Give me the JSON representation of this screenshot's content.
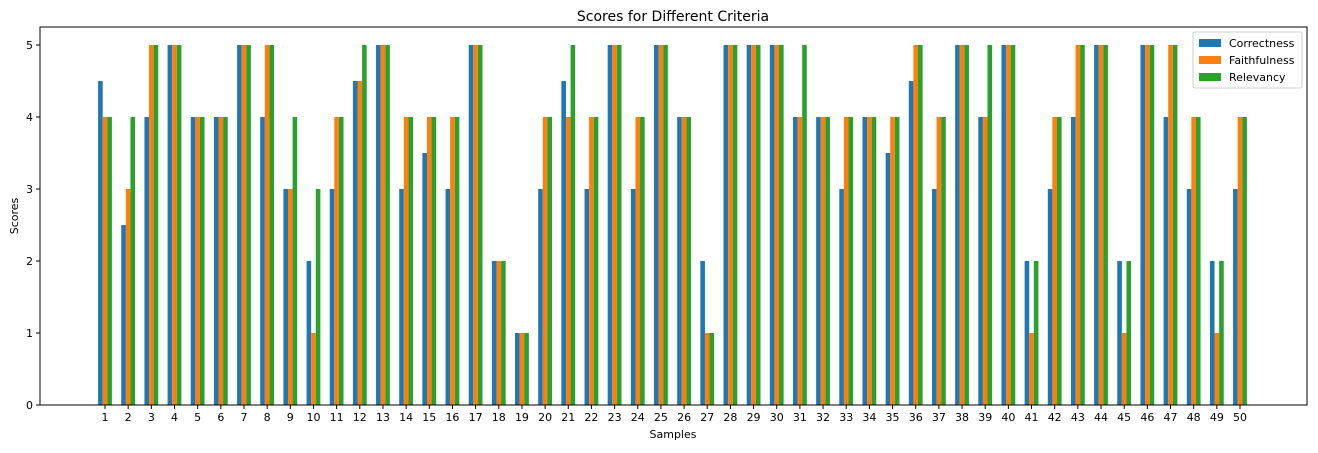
{
  "chart_data": {
    "type": "bar",
    "title": "Scores for Different Criteria",
    "xlabel": "Samples",
    "ylabel": "Scores",
    "ylim": [
      0,
      5.25
    ],
    "yticks": [
      0,
      1,
      2,
      3,
      4,
      5
    ],
    "grid": false,
    "legend_position": "top-right",
    "categories": [
      "1",
      "2",
      "3",
      "4",
      "5",
      "6",
      "7",
      "8",
      "9",
      "10",
      "11",
      "12",
      "13",
      "14",
      "15",
      "16",
      "17",
      "18",
      "19",
      "20",
      "21",
      "22",
      "23",
      "24",
      "25",
      "26",
      "27",
      "28",
      "29",
      "30",
      "31",
      "32",
      "33",
      "34",
      "35",
      "36",
      "37",
      "38",
      "39",
      "40",
      "41",
      "42",
      "43",
      "44",
      "45",
      "46",
      "47",
      "48",
      "49",
      "50"
    ],
    "series": [
      {
        "name": "Correctness",
        "color": "#1f77b4",
        "values": [
          4.5,
          2.5,
          4,
          5,
          4,
          4,
          5,
          4,
          3,
          2,
          3,
          4.5,
          5,
          3,
          3.5,
          3,
          5,
          2,
          1,
          3,
          4.5,
          3,
          5,
          3,
          5,
          4,
          2,
          5,
          5,
          5,
          4,
          4,
          3,
          4,
          3.5,
          4.5,
          3,
          5,
          4,
          5,
          2,
          3,
          4,
          5,
          2,
          5,
          4,
          3,
          2,
          3
        ]
      },
      {
        "name": "Faithfulness",
        "color": "#ff7f0e",
        "values": [
          4,
          3,
          5,
          5,
          4,
          4,
          5,
          5,
          3,
          1,
          4,
          4.5,
          5,
          4,
          4,
          4,
          5,
          2,
          1,
          4,
          4,
          4,
          5,
          4,
          5,
          4,
          1,
          5,
          5,
          5,
          4,
          4,
          4,
          4,
          4,
          5,
          4,
          5,
          4,
          5,
          1,
          4,
          5,
          5,
          1,
          5,
          5,
          4,
          1,
          4
        ]
      },
      {
        "name": "Relevancy",
        "color": "#2ca02c",
        "values": [
          4,
          4,
          5,
          5,
          4,
          4,
          5,
          5,
          4,
          3,
          4,
          5,
          5,
          4,
          4,
          4,
          5,
          2,
          1,
          4,
          5,
          4,
          5,
          4,
          5,
          4,
          1,
          5,
          5,
          5,
          5,
          4,
          4,
          4,
          4,
          5,
          4,
          5,
          5,
          5,
          2,
          4,
          5,
          5,
          2,
          5,
          5,
          4,
          2,
          4
        ]
      }
    ]
  }
}
